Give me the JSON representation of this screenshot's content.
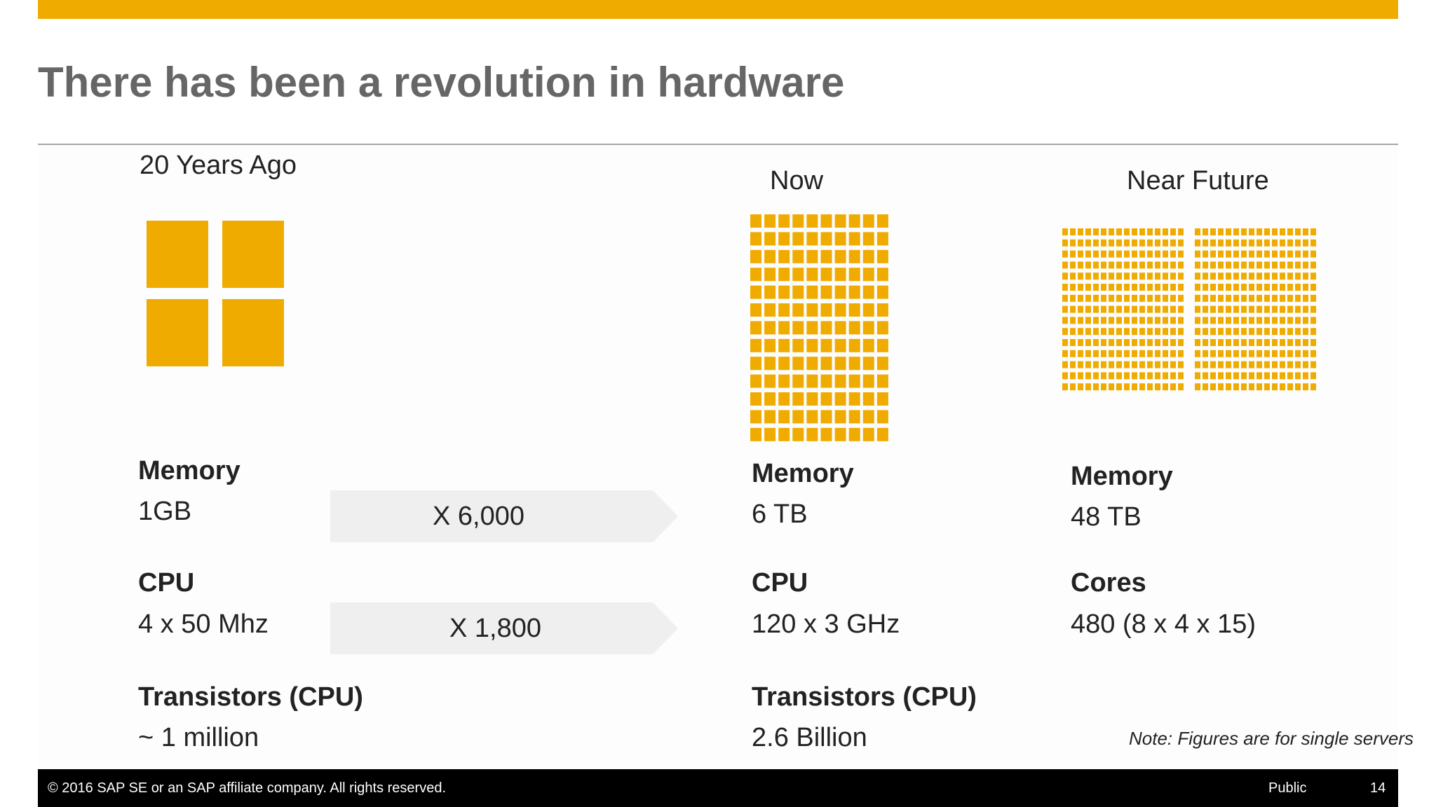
{
  "slide": {
    "title": "There has been a revolution in hardware",
    "colors": {
      "accent": "#F0AB00",
      "text": "#222222",
      "title": "#666666",
      "arrow_fill": "#EFEFEF",
      "footer_bg": "#000000"
    }
  },
  "columns": {
    "past": {
      "heading": "20 Years Ago",
      "chip_icon": "four-chip-grid-icon",
      "memory_label": "Memory",
      "memory_value": "1GB",
      "cpu_label": "CPU",
      "cpu_value": "4 x 50 Mhz",
      "transistors_label": "Transistors (CPU)",
      "transistors_value": "~ 1 million"
    },
    "now": {
      "heading": "Now",
      "chip_icon": "chip-grid-icon",
      "memory_label": "Memory",
      "memory_value": "6 TB",
      "cpu_label": "CPU",
      "cpu_value": "120 x 3 GHz",
      "transistors_label": "Transistors (CPU)",
      "transistors_value": "2.6 Billion"
    },
    "future": {
      "heading": "Near Future",
      "chip_icon": "dense-chip-grid-icon",
      "memory_label": "Memory",
      "memory_value": "48 TB",
      "cores_label": "Cores",
      "cores_value": "480 (8 x 4 x 15)"
    }
  },
  "arrows": {
    "memory_factor": "X 6,000",
    "cpu_factor": "X 1,800",
    "arrow_icon": "chevron-arrow-icon"
  },
  "note": "Note: Figures are for single servers",
  "footer": {
    "copyright": "© 2016 SAP SE or an SAP affiliate company. All rights reserved.",
    "classification": "Public",
    "page_number": "14"
  }
}
